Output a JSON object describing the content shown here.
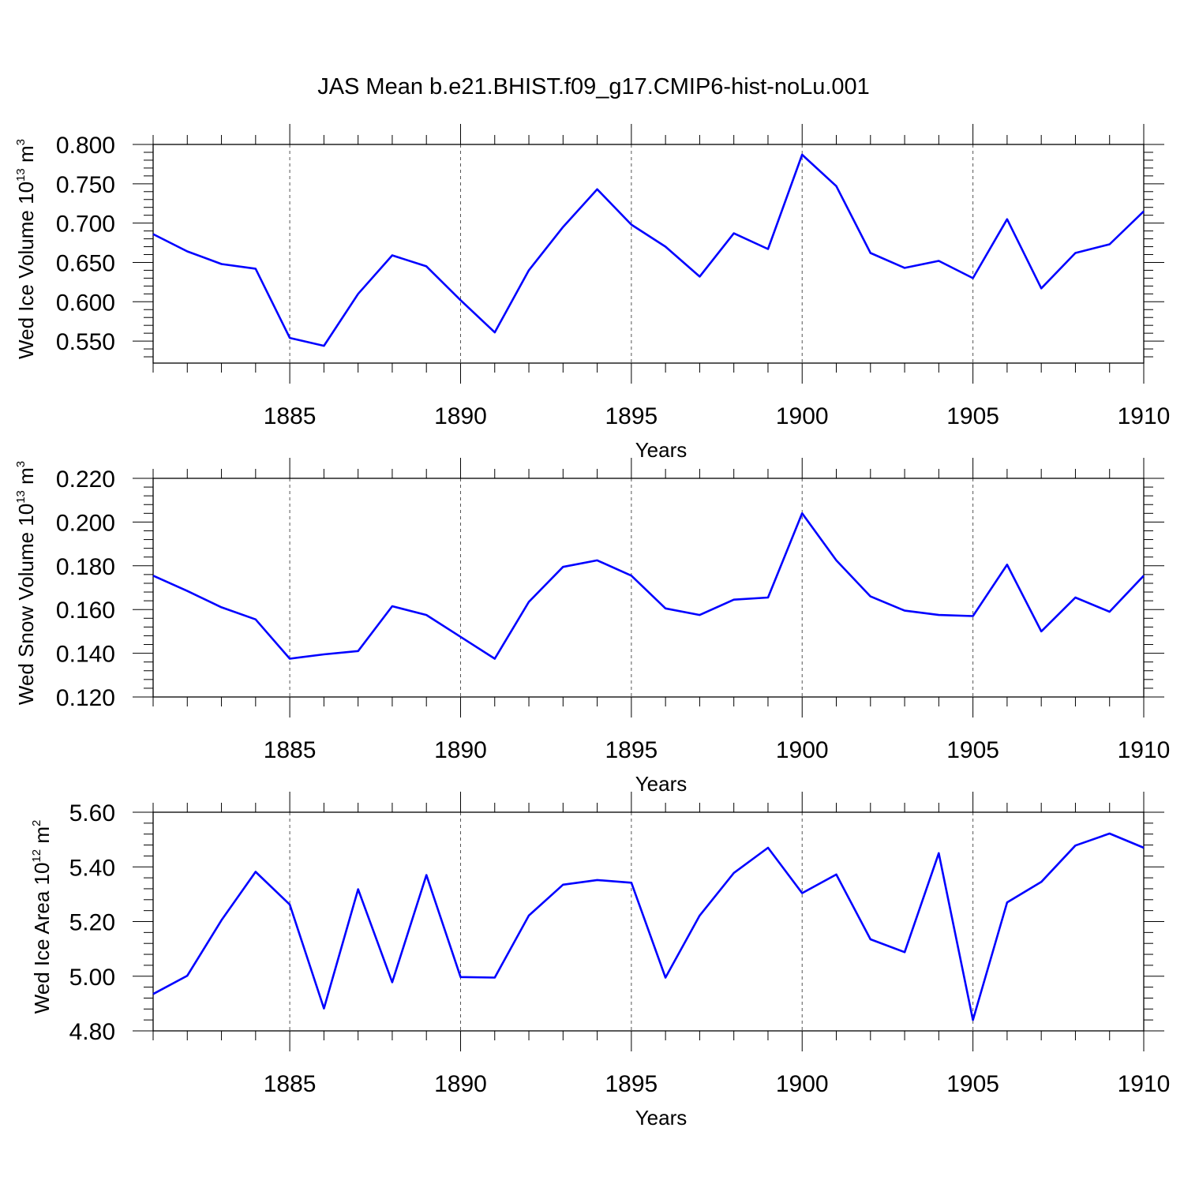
{
  "title": "JAS Mean b.e21.BHIST.f09_g17.CMIP6-hist-noLu.001",
  "chart_data": [
    {
      "type": "line",
      "ylabel": {
        "main": "Wed Ice Volume 10",
        "exp": "13",
        "unit": " m",
        "unit_exp": "3"
      },
      "xlabel": "Years",
      "xlim": [
        1881,
        1910
      ],
      "ylim": [
        0.522,
        0.8
      ],
      "yticks": [
        0.55,
        0.6,
        0.65,
        0.7,
        0.75,
        0.8
      ],
      "ytick_labels": [
        "0.550",
        "0.600",
        "0.650",
        "0.700",
        "0.750",
        "0.800"
      ],
      "xticks": [
        1885,
        1890,
        1895,
        1900,
        1905,
        1910
      ],
      "xtick_labels": [
        "1885",
        "1890",
        "1895",
        "1900",
        "1905",
        "1910"
      ],
      "grid": "vertical-dashed",
      "line_color": "#0000ff",
      "x": [
        1881,
        1882,
        1883,
        1884,
        1885,
        1886,
        1887,
        1888,
        1889,
        1890,
        1891,
        1892,
        1893,
        1894,
        1895,
        1896,
        1897,
        1898,
        1899,
        1900,
        1901,
        1902,
        1903,
        1904,
        1905,
        1906,
        1907,
        1908,
        1909,
        1910
      ],
      "y": [
        0.686,
        0.664,
        0.648,
        0.642,
        0.554,
        0.544,
        0.61,
        0.659,
        0.645,
        0.602,
        0.561,
        0.64,
        0.695,
        0.743,
        0.698,
        0.67,
        0.632,
        0.687,
        0.667,
        0.787,
        0.747,
        0.662,
        0.643,
        0.652,
        0.63,
        0.705,
        0.617,
        0.662,
        0.673,
        0.715
      ]
    },
    {
      "type": "line",
      "ylabel": {
        "main": "Wed Snow Volume 10",
        "exp": "13",
        "unit": " m",
        "unit_exp": "3"
      },
      "xlabel": "Years",
      "xlim": [
        1881,
        1910
      ],
      "ylim": [
        0.12,
        0.22
      ],
      "yticks": [
        0.12,
        0.14,
        0.16,
        0.18,
        0.2,
        0.22
      ],
      "ytick_labels": [
        "0.120",
        "0.140",
        "0.160",
        "0.180",
        "0.200",
        "0.220"
      ],
      "xticks": [
        1885,
        1890,
        1895,
        1900,
        1905,
        1910
      ],
      "xtick_labels": [
        "1885",
        "1890",
        "1895",
        "1900",
        "1905",
        "1910"
      ],
      "grid": "vertical-dashed",
      "line_color": "#0000ff",
      "x": [
        1881,
        1882,
        1883,
        1884,
        1885,
        1886,
        1887,
        1888,
        1889,
        1890,
        1891,
        1892,
        1893,
        1894,
        1895,
        1896,
        1897,
        1898,
        1899,
        1900,
        1901,
        1902,
        1903,
        1904,
        1905,
        1906,
        1907,
        1908,
        1909,
        1910
      ],
      "y": [
        0.1755,
        0.1685,
        0.161,
        0.1555,
        0.1375,
        0.1395,
        0.141,
        0.1615,
        0.1575,
        0.1475,
        0.1375,
        0.1635,
        0.1795,
        0.1825,
        0.1755,
        0.1605,
        0.1575,
        0.1645,
        0.1655,
        0.204,
        0.1825,
        0.166,
        0.1595,
        0.1575,
        0.157,
        0.1805,
        0.15,
        0.1655,
        0.159,
        0.1755
      ]
    },
    {
      "type": "line",
      "ylabel": {
        "main": "Wed Ice Area 10",
        "exp": "12",
        "unit": " m",
        "unit_exp": "2"
      },
      "xlabel": "Years",
      "xlim": [
        1881,
        1910
      ],
      "ylim": [
        4.8,
        5.6
      ],
      "yticks": [
        4.8,
        5.0,
        5.2,
        5.4,
        5.6
      ],
      "ytick_labels": [
        "4.80",
        "5.00",
        "5.20",
        "5.40",
        "5.60"
      ],
      "xticks": [
        1885,
        1890,
        1895,
        1900,
        1905,
        1910
      ],
      "xtick_labels": [
        "1885",
        "1890",
        "1895",
        "1900",
        "1905",
        "1910"
      ],
      "grid": "vertical-dashed",
      "line_color": "#0000ff",
      "x": [
        1881,
        1882,
        1883,
        1884,
        1885,
        1886,
        1887,
        1888,
        1889,
        1890,
        1891,
        1892,
        1893,
        1894,
        1895,
        1896,
        1897,
        1898,
        1899,
        1900,
        1901,
        1902,
        1903,
        1904,
        1905,
        1906,
        1907,
        1908,
        1909,
        1910
      ],
      "y": [
        4.935,
        5.002,
        5.205,
        5.382,
        5.262,
        4.882,
        5.318,
        4.978,
        5.37,
        4.997,
        4.995,
        5.222,
        5.335,
        5.352,
        5.342,
        4.995,
        5.222,
        5.378,
        5.47,
        5.304,
        5.372,
        5.135,
        5.088,
        5.45,
        4.84,
        5.27,
        5.345,
        5.478,
        5.522,
        5.47
      ]
    }
  ]
}
